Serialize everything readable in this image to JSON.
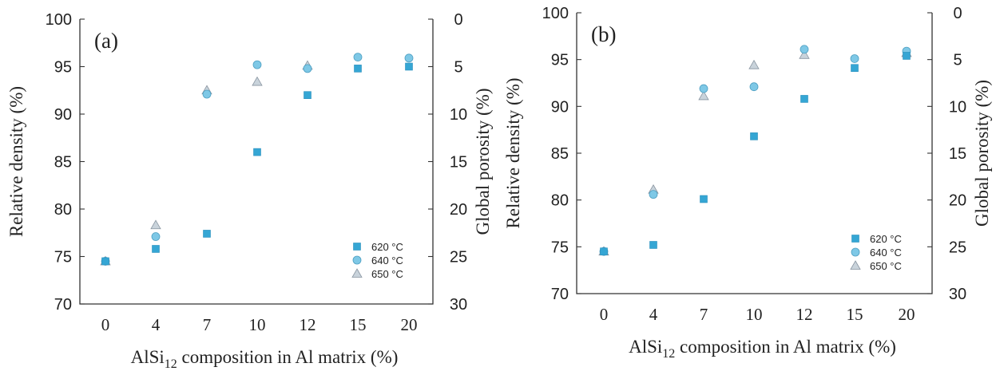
{
  "chart_data": [
    {
      "type": "scatter",
      "panel_label": "(a)",
      "categories": [
        "0",
        "4",
        "7",
        "10",
        "12",
        "15",
        "20"
      ],
      "xlabel": {
        "main": "AlSi",
        "sub": "12",
        "rest": " composition in Al matrix (%)"
      },
      "ylabel": "Relative density (%)",
      "y2label": "Global porosity (%)",
      "ylim": [
        70,
        100
      ],
      "y2lim": [
        30,
        0
      ],
      "yticks": [
        "70",
        "75",
        "80",
        "85",
        "90",
        "95",
        "100"
      ],
      "y2ticks": [
        "0",
        "5",
        "10",
        "15",
        "20",
        "25",
        "30"
      ],
      "legend_position": "bottom-right",
      "series": [
        {
          "name": "620 °C",
          "marker": "square",
          "color": "#35a6d4",
          "values": [
            74.5,
            75.8,
            77.4,
            86.0,
            92.0,
            94.8,
            95.0
          ]
        },
        {
          "name": "640 °C",
          "marker": "circle",
          "color": "#7ec8e6",
          "values": [
            74.5,
            77.1,
            92.1,
            95.2,
            94.8,
            96.0,
            95.9
          ]
        },
        {
          "name": "650 °C",
          "marker": "triangle",
          "color": "#c9d3db",
          "values": [
            74.5,
            78.3,
            92.5,
            93.4,
            95.1,
            null,
            null
          ]
        }
      ]
    },
    {
      "type": "scatter",
      "panel_label": "(b)",
      "categories": [
        "0",
        "4",
        "7",
        "10",
        "12",
        "15",
        "20"
      ],
      "xlabel": {
        "main": "AlSi",
        "sub": "12",
        "rest": " composition in Al matrix (%)"
      },
      "ylabel": "Relative density (%)",
      "y2label": "Global porosity (%)",
      "ylim": [
        70,
        100
      ],
      "y2lim": [
        30,
        0
      ],
      "yticks": [
        "70",
        "75",
        "80",
        "85",
        "90",
        "95",
        "100"
      ],
      "y2ticks": [
        "0",
        "5",
        "10",
        "15",
        "20",
        "25",
        "30"
      ],
      "legend_position": "bottom-right",
      "series": [
        {
          "name": "620 °C",
          "marker": "square",
          "color": "#35a6d4",
          "values": [
            74.5,
            75.2,
            80.1,
            86.8,
            90.8,
            94.1,
            95.4
          ]
        },
        {
          "name": "640 °C",
          "marker": "circle",
          "color": "#7ec8e6",
          "values": [
            74.5,
            80.6,
            91.9,
            92.1,
            96.1,
            95.1,
            95.9
          ]
        },
        {
          "name": "650 °C",
          "marker": "triangle",
          "color": "#c9d3db",
          "values": [
            74.5,
            81.1,
            91.1,
            94.4,
            95.5,
            null,
            95.7
          ]
        }
      ]
    }
  ]
}
